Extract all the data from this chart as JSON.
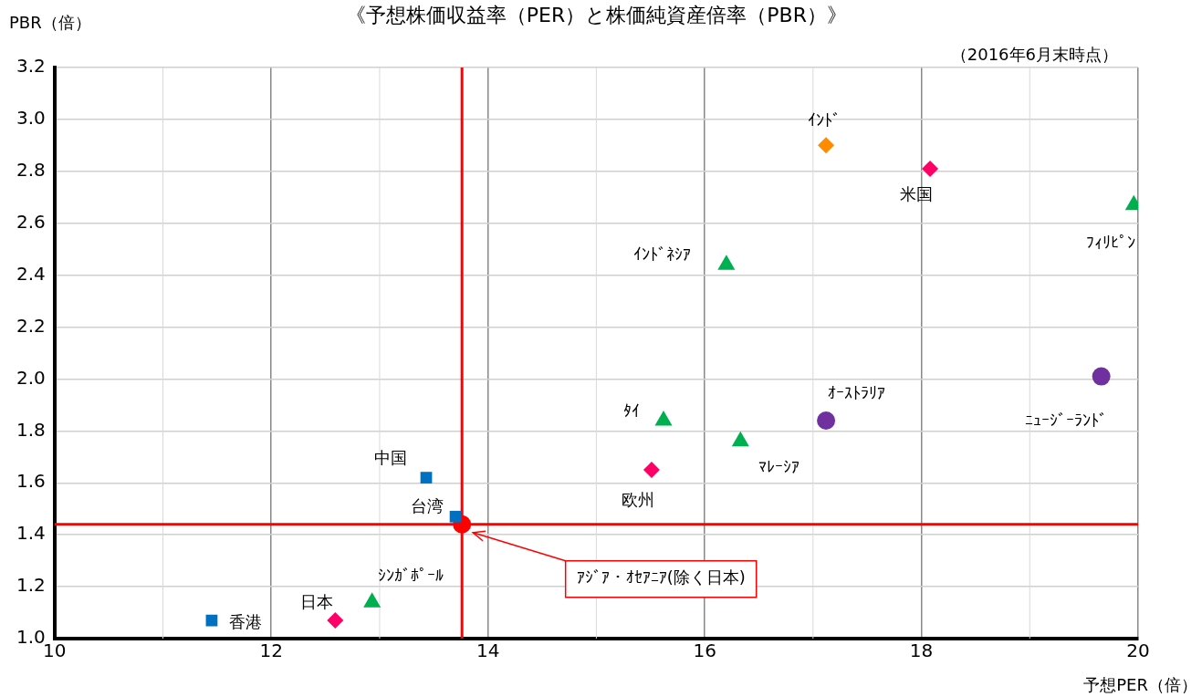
{
  "chart_data": {
    "type": "scatter",
    "title": "《予想株価収益率（PER）と株価純資産倍率（PBR）》",
    "xlabel": "予想PER（倍）",
    "ylabel": "PBR（倍）",
    "annotations": [
      "（2016年6月末時点）"
    ],
    "xlim": [
      10,
      20
    ],
    "xticks": [
      10,
      12,
      14,
      16,
      18,
      20
    ],
    "ylim": [
      1,
      3.2
    ],
    "yticks": [
      {
        "value": 1,
        "label": "1.0"
      },
      {
        "value": 1.2,
        "label": "1.2"
      },
      {
        "value": 1.4,
        "label": "1.4"
      },
      {
        "value": 1.6,
        "label": "1.6"
      },
      {
        "value": 1.8,
        "label": "1.8"
      },
      {
        "value": 2,
        "label": "2.0"
      },
      {
        "value": 2.2,
        "label": "2.2"
      },
      {
        "value": 2.4,
        "label": "2.4"
      },
      {
        "value": 2.6,
        "label": "2.6"
      },
      {
        "value": 2.8,
        "label": "2.8"
      },
      {
        "value": 3,
        "label": "3.0"
      },
      {
        "value": 3.2,
        "label": "3.2"
      }
    ],
    "grid": true,
    "legend": false,
    "ref_lines": [
      {
        "axis": "x",
        "value": 13.76,
        "color": "#ff0000"
      },
      {
        "axis": "y",
        "value": 1.44,
        "color": "#ff0000"
      }
    ],
    "series": [
      {
        "name": "香港",
        "color": "#0070c0",
        "marker": "square",
        "x": [
          11.45
        ],
        "values": [
          1.07
        ]
      },
      {
        "name": "日本",
        "color": "#ff0066",
        "marker": "diamond",
        "x": [
          12.59
        ],
        "values": [
          1.07
        ]
      },
      {
        "name": "ｼﾝｶﾞﾎﾟｰﾙ",
        "color": "#00b050",
        "marker": "triangle",
        "x": [
          12.93
        ],
        "values": [
          1.14
        ]
      },
      {
        "name": "中国",
        "color": "#0070c0",
        "marker": "square",
        "x": [
          13.43
        ],
        "values": [
          1.62
        ]
      },
      {
        "name": "台湾",
        "color": "#0070c0",
        "marker": "square",
        "x": [
          13.7
        ],
        "values": [
          1.47
        ]
      },
      {
        "name": "ｱｼﾞｱ・ｵｾｱﾆｱ(除く日本)",
        "color": "#ff0000",
        "marker": "circle",
        "x": [
          13.76
        ],
        "values": [
          1.44
        ]
      },
      {
        "name": "欧州",
        "color": "#ff0066",
        "marker": "diamond",
        "x": [
          15.51
        ],
        "values": [
          1.65
        ]
      },
      {
        "name": "ﾀｲ",
        "color": "#00b050",
        "marker": "triangle",
        "x": [
          15.62
        ],
        "values": [
          1.84
        ]
      },
      {
        "name": "ﾏﾚｰｼｱ",
        "color": "#00b050",
        "marker": "triangle",
        "x": [
          16.33
        ],
        "values": [
          1.76
        ]
      },
      {
        "name": "ｲﾝﾄﾞﾈｼｱ",
        "color": "#00b050",
        "marker": "triangle",
        "x": [
          16.2
        ],
        "values": [
          2.44
        ]
      },
      {
        "name": "ｵｰｽﾄﾗﾘｱ",
        "color": "#7030a0",
        "marker": "circle",
        "x": [
          17.12
        ],
        "values": [
          1.84
        ]
      },
      {
        "name": "ｲﾝﾄﾞ",
        "color": "#ff8c00",
        "marker": "diamond",
        "x": [
          17.12
        ],
        "values": [
          2.9
        ]
      },
      {
        "name": "米国",
        "color": "#ff0066",
        "marker": "diamond",
        "x": [
          18.08
        ],
        "values": [
          2.81
        ]
      },
      {
        "name": "ﾌｨﾘﾋﾟﾝ",
        "color": "#00b050",
        "marker": "triangle",
        "x": [
          19.96
        ],
        "values": [
          2.67
        ]
      },
      {
        "name": "ﾆｭｰｼﾞｰﾗﾝﾄﾞ",
        "color": "#7030a0",
        "marker": "circle",
        "x": [
          19.66
        ],
        "values": [
          2.01
        ]
      }
    ]
  }
}
